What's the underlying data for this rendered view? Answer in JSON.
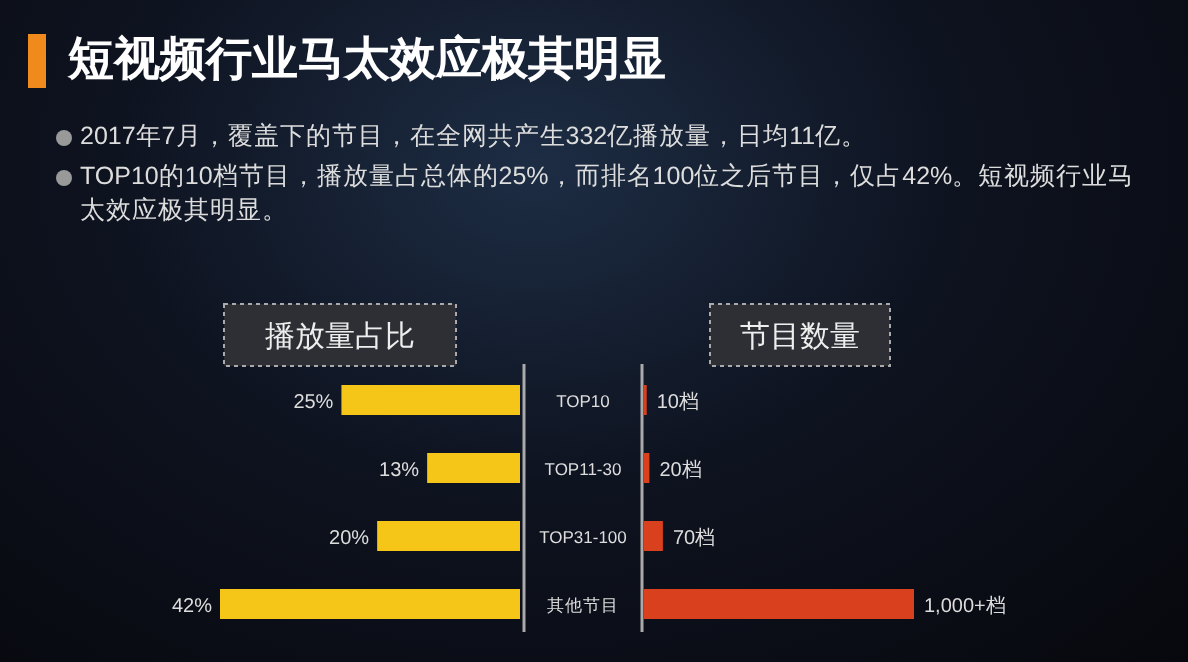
{
  "chart_data": [
    {
      "type": "bar",
      "orientation": "horizontal",
      "title": "短视频行业马太效应极其明显",
      "subtitle": "播放量占比",
      "annotations": [
        "2017年7月，覆盖下的节目，在全网共产生332亿播放量，日均11亿。",
        "TOP10的10档节目，播放量占总体的25%，而排名100位之后节目，仅占42%。短视频行业马太效应极其明显。"
      ],
      "categories": [
        "TOP10",
        "TOP11-30",
        "TOP31-100",
        "其他节目"
      ],
      "series": [
        {
          "color": "#f5c518",
          "values": [
            25,
            13,
            20,
            42
          ],
          "value_labels": [
            "25%",
            "13%",
            "20%",
            "42%"
          ]
        }
      ]
    },
    {
      "type": "bar",
      "orientation": "horizontal",
      "subtitle": "节目数量",
      "series": [
        {
          "color": "#d9401e",
          "values": [
            10,
            20,
            70,
            1000
          ],
          "value_labels": [
            "10档",
            "20档",
            "70档",
            "1,000+档"
          ]
        }
      ]
    }
  ]
}
